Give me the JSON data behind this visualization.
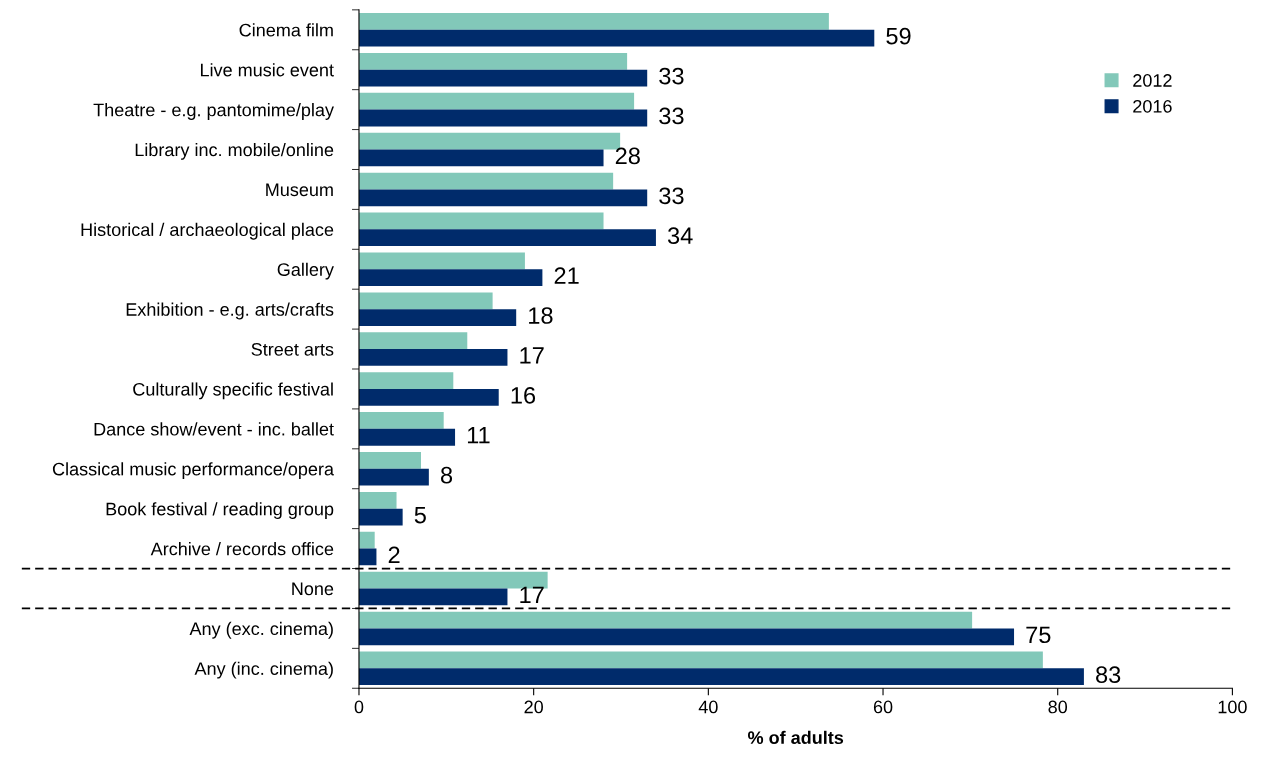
{
  "chart_data": {
    "type": "bar",
    "orientation": "horizontal",
    "xlabel": "% of adults",
    "categories": [
      "Cinema film",
      "Live music event",
      "Theatre - e.g. pantomime/play",
      "Library inc. mobile/online",
      "Museum",
      "Historical / archaeological place",
      "Gallery",
      "Exhibition - e.g. arts/crafts",
      "Street arts",
      "Culturally specific festival",
      "Dance show/event - inc. ballet",
      "Classical music performance/opera",
      "Book festival / reading group",
      "Archive / records office",
      "None",
      "Any (exc. cinema)",
      "Any (inc. cinema)"
    ],
    "series": [
      {
        "name": "2012",
        "color": "#82c8b9",
        "values": [
          53.8,
          30.7,
          31.5,
          29.9,
          29.1,
          28.0,
          19.0,
          15.3,
          12.4,
          10.8,
          9.7,
          7.1,
          4.3,
          1.8,
          21.6,
          70.2,
          78.3
        ]
      },
      {
        "name": "2016",
        "color": "#002b6b",
        "values": [
          59,
          33,
          33,
          28,
          33,
          34,
          21,
          18,
          17,
          16,
          11,
          8,
          5,
          2,
          17,
          75,
          83
        ],
        "value_labels": [
          "59",
          "33",
          "33",
          "28",
          "33",
          "34",
          "21",
          "18",
          "17",
          "16",
          "11",
          "8",
          "5",
          "2",
          "17",
          "75",
          "83"
        ]
      }
    ],
    "xlim": [
      0,
      100
    ],
    "xticks": [
      0,
      20,
      40,
      60,
      80,
      100
    ],
    "legend": "top right",
    "grid": false
  }
}
